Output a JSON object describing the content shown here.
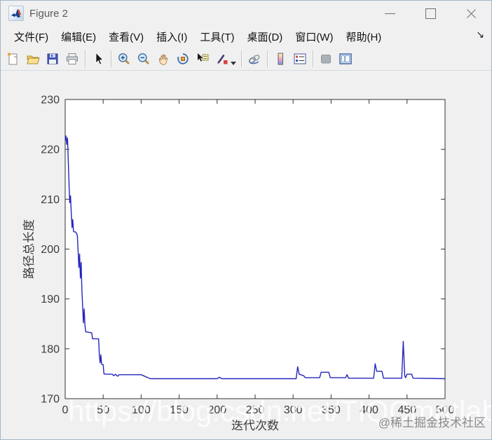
{
  "titlebar": {
    "title": "Figure 2",
    "app_icon": "matlab-logo",
    "control_icons": [
      "minimize",
      "maximize",
      "close"
    ]
  },
  "menu": {
    "items": [
      "文件(F)",
      "编辑(E)",
      "查看(V)",
      "插入(I)",
      "工具(T)",
      "桌面(D)",
      "窗口(W)",
      "帮助(H)"
    ],
    "overflow_icon_glyph": "↘"
  },
  "toolbar": {
    "groups": [
      [
        "new-figure",
        "open-file",
        "save-figure",
        "print-figure"
      ],
      [
        "pointer"
      ],
      [
        "zoom-in",
        "zoom-out",
        "pan",
        "rotate-3d",
        "data-cursor",
        "brush-data"
      ],
      [
        "link-plots"
      ],
      [
        "insert-colorbar",
        "insert-legend"
      ],
      [
        "plot-tools-hide",
        "plot-tools-dock"
      ]
    ]
  },
  "chart_data": {
    "type": "line",
    "title": "",
    "xlabel": "迭代次数",
    "ylabel": "路径总长度",
    "xlim": [
      0,
      500
    ],
    "ylim": [
      170,
      230
    ],
    "xticks": [
      0,
      50,
      100,
      150,
      200,
      250,
      300,
      350,
      400,
      450,
      500
    ],
    "yticks": [
      170,
      180,
      190,
      200,
      210,
      220,
      230
    ],
    "grid": false,
    "legend": "none",
    "box": true,
    "line_color": "#2525bd",
    "series": [
      {
        "name": "路径总长度",
        "points": [
          [
            0,
            221.8
          ],
          [
            1,
            222.7
          ],
          [
            2,
            221.0
          ],
          [
            3,
            222.3
          ],
          [
            5,
            213.5
          ],
          [
            6,
            209.3
          ],
          [
            7,
            210.7
          ],
          [
            8,
            207.2
          ],
          [
            9,
            204.3
          ],
          [
            10,
            205.9
          ],
          [
            11,
            203.5
          ],
          [
            14,
            203.4
          ],
          [
            16,
            202.8
          ],
          [
            17,
            199.8
          ],
          [
            18,
            196.3
          ],
          [
            19,
            199.0
          ],
          [
            20,
            194.2
          ],
          [
            21,
            197.3
          ],
          [
            22,
            191.9
          ],
          [
            23,
            188.6
          ],
          [
            24,
            185.2
          ],
          [
            25,
            188.0
          ],
          [
            26,
            184.8
          ],
          [
            27,
            183.4
          ],
          [
            31,
            183.3
          ],
          [
            35,
            183.2
          ],
          [
            36,
            182.0
          ],
          [
            44,
            182.0
          ],
          [
            45,
            178.6
          ],
          [
            46,
            177.2
          ],
          [
            47,
            178.8
          ],
          [
            48,
            176.9
          ],
          [
            50,
            176.8
          ],
          [
            51,
            175.0
          ],
          [
            53,
            174.9
          ],
          [
            62,
            174.9
          ],
          [
            64,
            174.6
          ],
          [
            66,
            174.9
          ],
          [
            69,
            174.5
          ],
          [
            71,
            174.8
          ],
          [
            100,
            174.8
          ],
          [
            112,
            174.0
          ],
          [
            200,
            174.0
          ],
          [
            203,
            174.3
          ],
          [
            206,
            174.0
          ],
          [
            304,
            174.0
          ],
          [
            306,
            176.4
          ],
          [
            308,
            174.9
          ],
          [
            314,
            174.6
          ],
          [
            316,
            174.2
          ],
          [
            335,
            174.2
          ],
          [
            337,
            175.3
          ],
          [
            347,
            175.3
          ],
          [
            349,
            174.2
          ],
          [
            369,
            174.2
          ],
          [
            371,
            174.8
          ],
          [
            373,
            174.1
          ],
          [
            406,
            174.1
          ],
          [
            408,
            177.0
          ],
          [
            410,
            175.5
          ],
          [
            417,
            175.5
          ],
          [
            419,
            174.1
          ],
          [
            443,
            174.1
          ],
          [
            445,
            181.5
          ],
          [
            447,
            174.6
          ],
          [
            448,
            174.2
          ],
          [
            450,
            174.9
          ],
          [
            456,
            174.9
          ],
          [
            458,
            174.1
          ],
          [
            500,
            174.0
          ]
        ]
      }
    ]
  },
  "watermark": {
    "url_text": "https://blog.csdn.net/TIQCmatlab",
    "community_text": "@稀土掘金技术社区"
  },
  "colors": {
    "figure_bg": "#f0f0f0",
    "plot_bg": "#ffffff",
    "axis": "#333333",
    "tick_label": "#3c3c3c",
    "line": "#2525bd"
  }
}
